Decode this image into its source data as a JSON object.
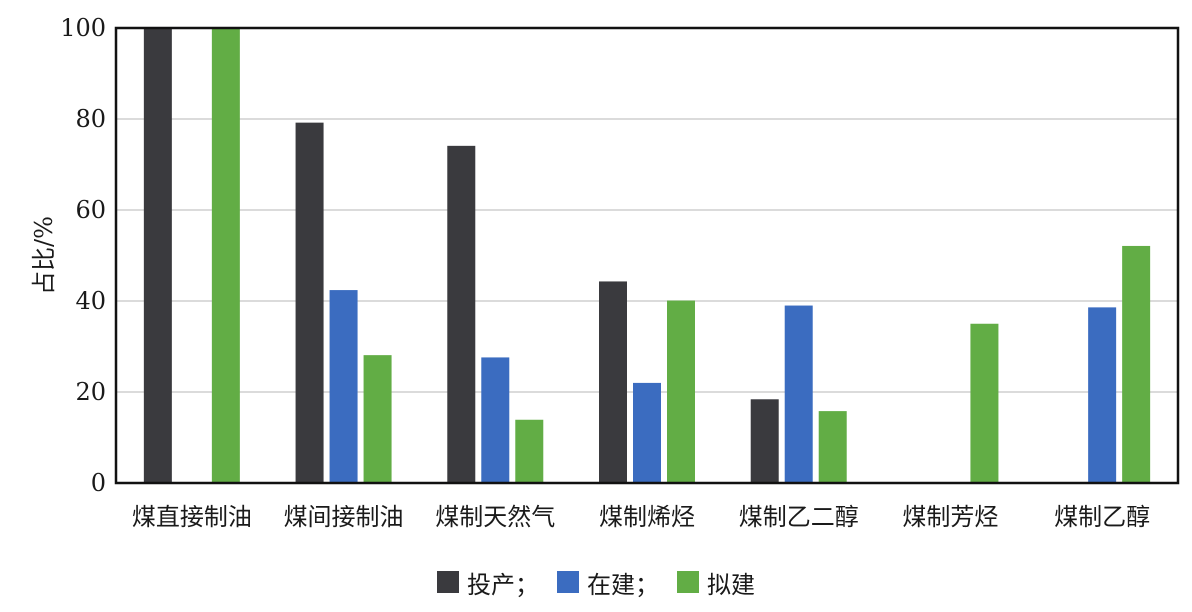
{
  "chart_data": {
    "type": "bar",
    "ylabel": "占比/%",
    "xlabel": "",
    "ylim": [
      0,
      100
    ],
    "yticks": [
      0,
      20,
      40,
      60,
      80,
      100
    ],
    "grid": true,
    "legend_position": "bottom-center",
    "categories": [
      "煤直接制油",
      "煤间接制油",
      "煤制天然气",
      "煤制烯烃",
      "煤制乙二醇",
      "煤制芳烃",
      "煤制乙醇"
    ],
    "series": [
      {
        "name": "投产",
        "color": "#3a3a3e",
        "values": [
          100,
          79.2,
          74.1,
          44.3,
          18.4,
          0,
          0
        ]
      },
      {
        "name": "在建",
        "color": "#3b6cc0",
        "values": [
          0,
          42.4,
          27.6,
          22.0,
          39.0,
          0,
          38.6
        ]
      },
      {
        "name": "拟建",
        "color": "#62ad45",
        "values": [
          100,
          28.1,
          13.9,
          40.1,
          15.8,
          35.0,
          52.1
        ]
      }
    ]
  },
  "legend": {
    "items": [
      {
        "label": "投产",
        "sep": "；",
        "color": "#3a3a3e"
      },
      {
        "label": "在建",
        "sep": "；",
        "color": "#3b6cc0"
      },
      {
        "label": "拟建",
        "sep": "",
        "color": "#62ad45"
      }
    ]
  }
}
